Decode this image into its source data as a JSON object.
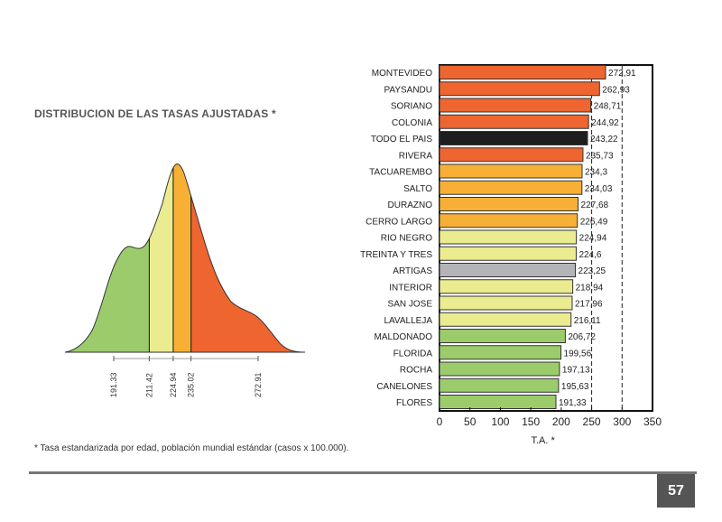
{
  "page": {
    "title": "DISTRIBUCION DE LAS TASAS AJUSTADAS *",
    "footnote": "* Tasa estandarizada por edad, población mundial estándar (casos x 100.000).",
    "page_number": "57"
  },
  "chart_data": [
    {
      "type": "area",
      "title": "DISTRIBUCION DE LAS TASAS AJUSTADAS *",
      "description_kind": "density",
      "tick_labels": [
        "191.33",
        "211.42",
        "224.94",
        "235.02",
        "272.91"
      ],
      "ticks": [
        191.33,
        211.42,
        224.94,
        235.02,
        272.91
      ],
      "segments": [
        {
          "from": 164,
          "to": 211.42,
          "color": "#9ccb6b"
        },
        {
          "from": 211.42,
          "to": 224.94,
          "color": "#ebeb8f"
        },
        {
          "from": 224.94,
          "to": 235.02,
          "color": "#f7b035"
        },
        {
          "from": 235.02,
          "to": 299,
          "color": "#ee6530"
        }
      ]
    },
    {
      "type": "bar",
      "orientation": "horizontal",
      "xlabel": "T.A. *",
      "xlim": [
        0,
        350
      ],
      "xticks": [
        0,
        50,
        100,
        150,
        200,
        250,
        300,
        350
      ],
      "reference_lines": [
        250,
        300
      ],
      "categories": [
        "MONTEVIDEO",
        "PAYSANDU",
        "SORIANO",
        "COLONIA",
        "TODO EL PAIS",
        "RIVERA",
        "TACUAREMBO",
        "SALTO",
        "DURAZNO",
        "CERRO LARGO",
        "RIO NEGRO",
        "TREINTA Y TRES",
        "ARTIGAS",
        "INTERIOR",
        "SAN JOSE",
        "LAVALLEJA",
        "MALDONADO",
        "FLORIDA",
        "ROCHA",
        "CANELONES",
        "FLORES"
      ],
      "values": [
        272.91,
        262.93,
        248.71,
        244.92,
        243.22,
        235.73,
        234.3,
        234.03,
        227.68,
        226.49,
        224.94,
        224.6,
        223.25,
        218.94,
        217.96,
        216.11,
        206.72,
        199.56,
        197.13,
        195.63,
        191.33
      ],
      "labels": [
        "272,91",
        "262,93",
        "248,71",
        "244,92",
        "243,22",
        "235,73",
        "234,3",
        "234,03",
        "227,68",
        "226,49",
        "224,94",
        "224,6",
        "223,25",
        "218,94",
        "217,96",
        "216,11",
        "206,72",
        "199,56",
        "197,13",
        "195,63",
        "191,33"
      ],
      "colors": [
        "#ee6530",
        "#ee6530",
        "#ee6530",
        "#ee6530",
        "#1e1e1e",
        "#ee6530",
        "#f7b035",
        "#f7b035",
        "#f7b035",
        "#f7b035",
        "#ebeb8f",
        "#ebeb8f",
        "#b4b4b8",
        "#ebeb8f",
        "#ebeb8f",
        "#ebeb8f",
        "#9ccb6b",
        "#9ccb6b",
        "#9ccb6b",
        "#9ccb6b",
        "#9ccb6b"
      ]
    }
  ]
}
